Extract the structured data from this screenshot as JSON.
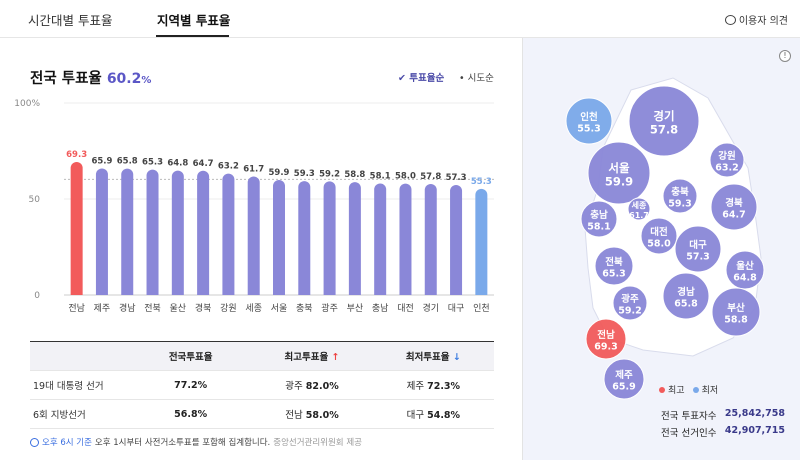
{
  "tabs": {
    "time": "시간대별 투표율",
    "region": "지역별 투표율"
  },
  "feedback": "이용자 의견",
  "title": {
    "label": "전국 투표율",
    "rate": "60.2",
    "pct": "%"
  },
  "sort": {
    "by_rate": "✔ 투표율순",
    "by_region": "• 시도순"
  },
  "colors": {
    "bar": "#8a87d8",
    "max": "#f25b5b",
    "min": "#7aa9ea",
    "accent": "#5b57c6"
  },
  "chart_data": {
    "type": "bar",
    "title": "전국 투표율",
    "ylim": [
      0,
      100
    ],
    "yticks": [
      "0",
      "50",
      "100%"
    ],
    "ytick_values": [
      0,
      50,
      100
    ],
    "reference_value": 60.2,
    "categories": [
      "전남",
      "제주",
      "경남",
      "전북",
      "울산",
      "경북",
      "강원",
      "세종",
      "서울",
      "충북",
      "광주",
      "부산",
      "충남",
      "대전",
      "경기",
      "대구",
      "인천"
    ],
    "values": [
      69.3,
      65.9,
      65.8,
      65.3,
      64.8,
      64.7,
      63.2,
      61.7,
      59.9,
      59.3,
      59.2,
      58.8,
      58.1,
      58.0,
      57.8,
      57.3,
      55.3
    ],
    "labels": [
      "69.3",
      "65.9",
      "65.8",
      "65.3",
      "64.8",
      "64.7",
      "63.2",
      "61.7",
      "59.9",
      "59.3",
      "59.2",
      "58.8",
      "58.1",
      "58.0",
      "57.8",
      "57.3",
      "55.3"
    ]
  },
  "stats": {
    "headers": {
      "national": "전국투표율",
      "highest": "최고투표율",
      "lowest": "최저투표율",
      "up": "↑",
      "down": "↓"
    },
    "rows": [
      {
        "name": "19대 대통령 선거",
        "national": "77.2%",
        "high_region": "광주",
        "high": "82.0%",
        "low_region": "제주",
        "low": "72.3%"
      },
      {
        "name": "6회 지방선거",
        "national": "56.8%",
        "high_region": "전남",
        "high": "58.0%",
        "low_region": "대구",
        "low": "54.8%"
      }
    ]
  },
  "note": {
    "time": "오후 6시 기준",
    "text": "오후 1시부터 사전거소투표를 포함해 집계합니다.",
    "source": "중앙선거관리위원회 제공"
  },
  "map": {
    "regions": [
      {
        "name": "인천",
        "value": "55.3",
        "type": "min"
      },
      {
        "name": "경기",
        "value": "57.8",
        "type": "normal"
      },
      {
        "name": "서울",
        "value": "59.9",
        "type": "normal"
      },
      {
        "name": "강원",
        "value": "63.2",
        "type": "normal"
      },
      {
        "name": "충북",
        "value": "59.3",
        "type": "normal"
      },
      {
        "name": "세종",
        "value": "61.7",
        "type": "normal"
      },
      {
        "name": "충남",
        "value": "58.1",
        "type": "normal"
      },
      {
        "name": "대전",
        "value": "58.0",
        "type": "normal"
      },
      {
        "name": "경북",
        "value": "64.7",
        "type": "normal"
      },
      {
        "name": "대구",
        "value": "57.3",
        "type": "normal"
      },
      {
        "name": "전북",
        "value": "65.3",
        "type": "normal"
      },
      {
        "name": "울산",
        "value": "64.8",
        "type": "normal"
      },
      {
        "name": "경남",
        "value": "65.8",
        "type": "normal"
      },
      {
        "name": "광주",
        "value": "59.2",
        "type": "normal"
      },
      {
        "name": "부산",
        "value": "58.8",
        "type": "normal"
      },
      {
        "name": "전남",
        "value": "69.3",
        "type": "max"
      },
      {
        "name": "제주",
        "value": "65.9",
        "type": "normal"
      }
    ],
    "legend": {
      "max": "최고",
      "min": "최저"
    },
    "totals": {
      "voters_label": "전국 투표자수",
      "voters": "25,842,758",
      "electorate_label": "전국 선거인수",
      "electorate": "42,907,715"
    }
  }
}
